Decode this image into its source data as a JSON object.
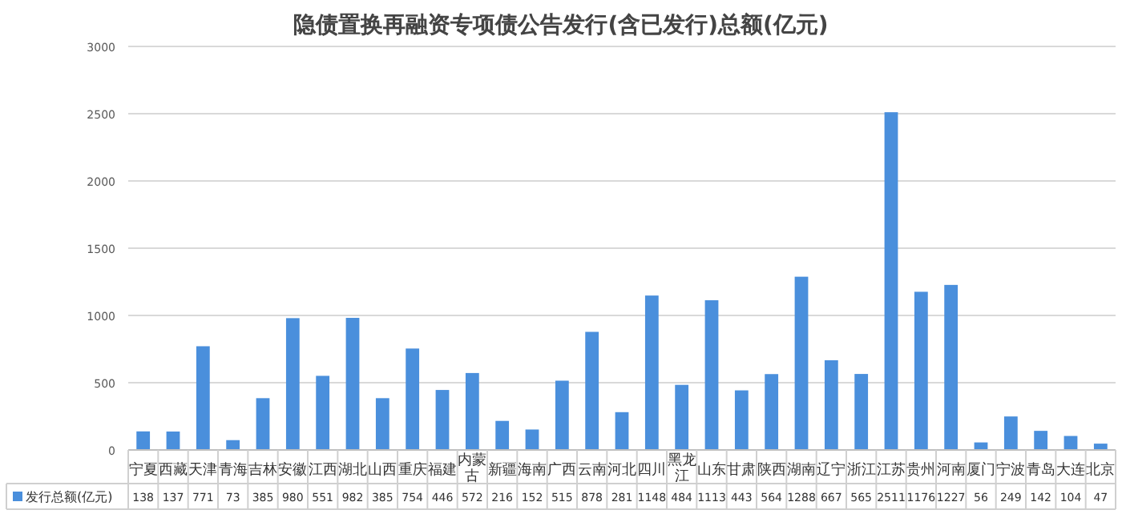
{
  "chart_data": {
    "type": "bar",
    "title": "隐债置换再融资专项债公告发行(含已发行)总额(亿元)",
    "categories": [
      "宁夏",
      "西藏",
      "天津",
      "青海",
      "吉林",
      "安徽",
      "江西",
      "湖北",
      "山西",
      "重庆",
      "福建",
      "内蒙古",
      "新疆",
      "海南",
      "广西",
      "云南",
      "河北",
      "四川",
      "黑龙江",
      "山东",
      "甘肃",
      "陕西",
      "湖南",
      "辽宁",
      "浙江",
      "江苏",
      "贵州",
      "河南",
      "厦门",
      "宁波",
      "青岛",
      "大连",
      "北京"
    ],
    "series": [
      {
        "name": "发行总额(亿元)",
        "color": "#4a8fdc",
        "values": [
          138,
          137,
          771,
          73,
          385,
          980,
          551,
          982,
          385,
          754,
          446,
          572,
          216,
          152,
          515,
          878,
          281,
          1148,
          484,
          1113,
          443,
          564,
          1288,
          667,
          565,
          2511,
          1176,
          1227,
          56,
          249,
          142,
          104,
          47
        ]
      }
    ],
    "ylim": [
      0,
      3000
    ],
    "yticks": [
      0,
      500,
      1000,
      1500,
      2000,
      2500,
      3000
    ],
    "grid": "y",
    "data_labels": true,
    "legend": "bottom"
  }
}
